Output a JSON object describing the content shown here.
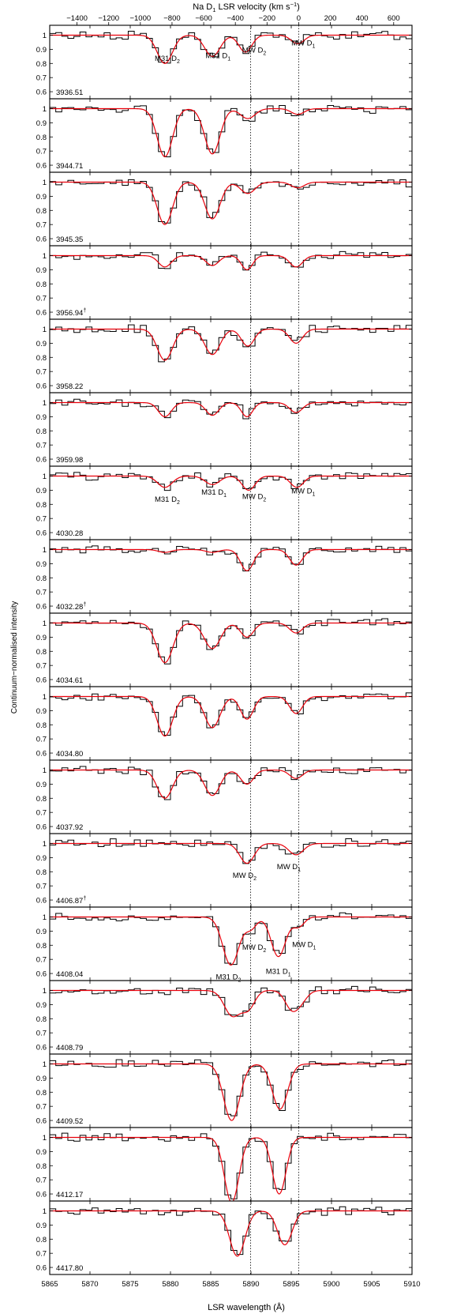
{
  "chart_data": {
    "type": "line",
    "xlabel": "LSR wavelength (Å)",
    "ylabel": "Continuum−normalised intensity",
    "top_axis_label": {
      "prefix": "Na D",
      "sub": "1",
      "middle": " LSR velocity (km s",
      "sup": "−1",
      "suffix": ")"
    },
    "xlim": [
      5865,
      5910
    ],
    "ylim": [
      0.55,
      1.07
    ],
    "x_ticks": [
      5865,
      5870,
      5875,
      5880,
      5885,
      5890,
      5895,
      5900,
      5905,
      5910
    ],
    "y_ticks": [
      0.6,
      0.7,
      0.8,
      0.9,
      1
    ],
    "top_ticks": [
      -1400,
      -1200,
      -1000,
      -800,
      -600,
      -400,
      -200,
      0,
      200,
      400,
      600
    ],
    "top_tick_labels": [
      "−1400",
      "−1200",
      "−1000",
      "−800",
      "−600",
      "−400",
      "−200",
      "0",
      "200",
      "400",
      "600"
    ],
    "reference_lines": [
      5889.95,
      5895.92
    ],
    "grid": false,
    "series_colors": {
      "data": "#000000",
      "model": "#e8000b"
    },
    "panels": [
      {
        "label": "3936.51",
        "dagger": false,
        "components": [
          {
            "x": 5879.3,
            "depth": 0.2,
            "sigma": 0.95
          },
          {
            "x": 5885.2,
            "depth": 0.15,
            "sigma": 0.95
          },
          {
            "x": 5889.3,
            "depth": 0.12,
            "sigma": 0.8
          },
          {
            "x": 5895.8,
            "depth": 0.06,
            "sigma": 0.8
          }
        ],
        "annotations": [
          {
            "text": "M31 D",
            "sub": "2",
            "x": 5879.6,
            "y": 0.84
          },
          {
            "text": "M31 D",
            "sub": "1",
            "x": 5885.9,
            "y": 0.86
          },
          {
            "text": "MW D",
            "sub": "2",
            "x": 5890.4,
            "y": 0.9
          },
          {
            "text": "MW D",
            "sub": "1",
            "x": 5896.5,
            "y": 0.95
          }
        ]
      },
      {
        "label": "3944.71",
        "dagger": false,
        "components": [
          {
            "x": 5879.3,
            "depth": 0.34,
            "sigma": 0.95
          },
          {
            "x": 5885.2,
            "depth": 0.32,
            "sigma": 0.95
          },
          {
            "x": 5889.6,
            "depth": 0.07,
            "sigma": 0.9
          },
          {
            "x": 5895.8,
            "depth": 0.04,
            "sigma": 0.8
          }
        ],
        "annotations": []
      },
      {
        "label": "3945.35",
        "dagger": false,
        "components": [
          {
            "x": 5879.3,
            "depth": 0.3,
            "sigma": 0.95
          },
          {
            "x": 5885.2,
            "depth": 0.26,
            "sigma": 0.95
          },
          {
            "x": 5889.6,
            "depth": 0.08,
            "sigma": 0.9
          },
          {
            "x": 5895.8,
            "depth": 0.04,
            "sigma": 0.8
          }
        ],
        "annotations": []
      },
      {
        "label": "3956.94",
        "dagger": true,
        "components": [
          {
            "x": 5879.3,
            "depth": 0.08,
            "sigma": 0.8
          },
          {
            "x": 5885.2,
            "depth": 0.07,
            "sigma": 0.8
          },
          {
            "x": 5889.5,
            "depth": 0.1,
            "sigma": 0.7
          },
          {
            "x": 5895.6,
            "depth": 0.08,
            "sigma": 0.8
          }
        ],
        "annotations": []
      },
      {
        "label": "3958.22",
        "dagger": false,
        "components": [
          {
            "x": 5879.3,
            "depth": 0.22,
            "sigma": 0.95
          },
          {
            "x": 5885.2,
            "depth": 0.18,
            "sigma": 0.95
          },
          {
            "x": 5889.6,
            "depth": 0.12,
            "sigma": 0.8
          },
          {
            "x": 5895.6,
            "depth": 0.1,
            "sigma": 0.8
          }
        ],
        "annotations": []
      },
      {
        "label": "3959.98",
        "dagger": false,
        "components": [
          {
            "x": 5879.3,
            "depth": 0.1,
            "sigma": 0.8
          },
          {
            "x": 5885.2,
            "depth": 0.09,
            "sigma": 0.8
          },
          {
            "x": 5889.5,
            "depth": 0.1,
            "sigma": 0.7
          },
          {
            "x": 5895.6,
            "depth": 0.07,
            "sigma": 0.8
          }
        ],
        "annotations": []
      },
      {
        "label": "4030.28",
        "dagger": false,
        "components": [
          {
            "x": 5879.3,
            "depth": 0.08,
            "sigma": 0.9
          },
          {
            "x": 5885.2,
            "depth": 0.06,
            "sigma": 0.9
          },
          {
            "x": 5889.7,
            "depth": 0.1,
            "sigma": 0.8
          },
          {
            "x": 5895.7,
            "depth": 0.08,
            "sigma": 0.8
          }
        ],
        "annotations": [
          {
            "text": "M31 D",
            "sub": "2",
            "x": 5879.6,
            "y": 0.84
          },
          {
            "text": "M31 D",
            "sub": "1",
            "x": 5885.4,
            "y": 0.89
          },
          {
            "text": "MW D",
            "sub": "2",
            "x": 5890.4,
            "y": 0.86
          },
          {
            "text": "MW D",
            "sub": "1",
            "x": 5896.5,
            "y": 0.9
          }
        ]
      },
      {
        "label": "4032.28",
        "dagger": true,
        "components": [
          {
            "x": 5879.3,
            "depth": 0.02,
            "sigma": 0.8
          },
          {
            "x": 5885.2,
            "depth": 0.02,
            "sigma": 0.8
          },
          {
            "x": 5889.5,
            "depth": 0.15,
            "sigma": 0.8
          },
          {
            "x": 5895.6,
            "depth": 0.11,
            "sigma": 0.8
          }
        ],
        "annotations": []
      },
      {
        "label": "4034.61",
        "dagger": false,
        "components": [
          {
            "x": 5879.3,
            "depth": 0.28,
            "sigma": 1.0
          },
          {
            "x": 5885.2,
            "depth": 0.18,
            "sigma": 1.0
          },
          {
            "x": 5889.5,
            "depth": 0.1,
            "sigma": 0.8
          },
          {
            "x": 5895.6,
            "depth": 0.07,
            "sigma": 0.8
          }
        ],
        "annotations": []
      },
      {
        "label": "4034.80",
        "dagger": false,
        "components": [
          {
            "x": 5879.3,
            "depth": 0.28,
            "sigma": 0.95
          },
          {
            "x": 5885.2,
            "depth": 0.22,
            "sigma": 0.95
          },
          {
            "x": 5889.5,
            "depth": 0.16,
            "sigma": 0.8
          },
          {
            "x": 5895.6,
            "depth": 0.12,
            "sigma": 0.8
          }
        ],
        "annotations": []
      },
      {
        "label": "4037.92",
        "dagger": false,
        "components": [
          {
            "x": 5879.3,
            "depth": 0.2,
            "sigma": 0.95
          },
          {
            "x": 5885.2,
            "depth": 0.18,
            "sigma": 0.95
          },
          {
            "x": 5889.5,
            "depth": 0.1,
            "sigma": 0.8
          },
          {
            "x": 5895.6,
            "depth": 0.06,
            "sigma": 0.8
          }
        ],
        "annotations": []
      },
      {
        "label": "4406.87",
        "dagger": true,
        "components": [
          {
            "x": 5889.5,
            "depth": 0.14,
            "sigma": 0.9
          },
          {
            "x": 5895.6,
            "depth": 0.08,
            "sigma": 0.9
          }
        ],
        "annotations": [
          {
            "text": "MW D",
            "sub": "2",
            "x": 5889.2,
            "y": 0.78
          },
          {
            "text": "MW D",
            "sub": "1",
            "x": 5894.7,
            "y": 0.84
          }
        ]
      },
      {
        "label": "4408.04",
        "dagger": false,
        "components": [
          {
            "x": 5887.5,
            "depth": 0.34,
            "sigma": 1.0
          },
          {
            "x": 5893.4,
            "depth": 0.28,
            "sigma": 0.9
          },
          {
            "x": 5890.0,
            "depth": 0.08,
            "sigma": 0.7
          },
          {
            "x": 5895.9,
            "depth": 0.07,
            "sigma": 0.7
          }
        ],
        "annotations": [
          {
            "text": "MW D",
            "sub": "2",
            "x": 5890.4,
            "y": 0.79
          },
          {
            "text": "MW D",
            "sub": "1",
            "x": 5896.6,
            "y": 0.81
          },
          {
            "text": "M31 D",
            "sub": "2",
            "x": 5887.2,
            "y": 0.58
          },
          {
            "text": "M31 D",
            "sub": "1",
            "x": 5893.4,
            "y": 0.62
          }
        ]
      },
      {
        "label": "4408.79",
        "dagger": false,
        "components": [
          {
            "x": 5887.7,
            "depth": 0.18,
            "sigma": 1.0
          },
          {
            "x": 5889.7,
            "depth": 0.12,
            "sigma": 0.8
          },
          {
            "x": 5895.0,
            "depth": 0.12,
            "sigma": 0.8
          },
          {
            "x": 5896.2,
            "depth": 0.07,
            "sigma": 0.8
          }
        ],
        "annotations": []
      },
      {
        "label": "4409.52",
        "dagger": false,
        "components": [
          {
            "x": 5887.6,
            "depth": 0.4,
            "sigma": 1.0
          },
          {
            "x": 5893.6,
            "depth": 0.32,
            "sigma": 0.95
          }
        ],
        "annotations": []
      },
      {
        "label": "4412.17",
        "dagger": false,
        "components": [
          {
            "x": 5887.6,
            "depth": 0.46,
            "sigma": 0.9
          },
          {
            "x": 5893.5,
            "depth": 0.4,
            "sigma": 0.85
          }
        ],
        "annotations": []
      },
      {
        "label": "4417.80",
        "dagger": false,
        "components": [
          {
            "x": 5888.3,
            "depth": 0.32,
            "sigma": 0.95
          },
          {
            "x": 5894.2,
            "depth": 0.24,
            "sigma": 0.9
          }
        ],
        "annotations": []
      }
    ]
  }
}
